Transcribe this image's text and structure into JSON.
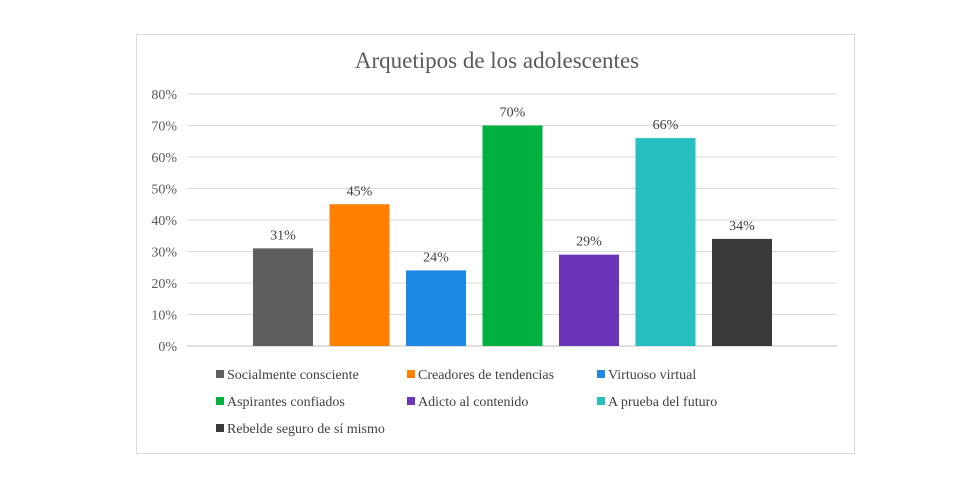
{
  "chart_data": {
    "type": "bar",
    "title": "Arquetipos de los adolescentes",
    "xlabel": "",
    "ylabel": "",
    "ylim": [
      0,
      80
    ],
    "y_ticks": [
      "0%",
      "10%",
      "20%",
      "30%",
      "40%",
      "50%",
      "60%",
      "70%",
      "80%"
    ],
    "grid": true,
    "legend_position": "bottom",
    "categories": [
      "Socialmente consciente",
      "Creadores de tendencias",
      "Virtuoso virtual",
      "Aspirantes confiados",
      "Adicto al contenido",
      "A prueba del futuro",
      "Rebelde seguro de sí mismo"
    ],
    "values": [
      31,
      45,
      24,
      70,
      29,
      66,
      34
    ],
    "data_labels": [
      "31%",
      "45%",
      "24%",
      "70%",
      "29%",
      "66%",
      "34%"
    ],
    "colors": [
      "#5f5f5f",
      "#ff7f00",
      "#1e88e5",
      "#00b140",
      "#6a35b8",
      "#25bfbf",
      "#3a3a3a"
    ]
  }
}
